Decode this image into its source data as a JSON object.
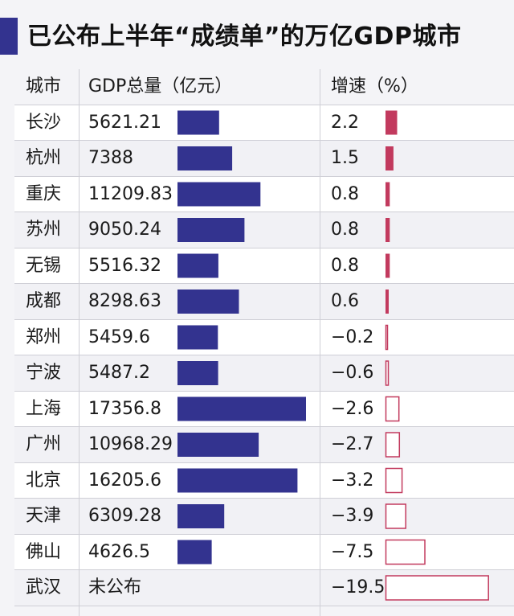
{
  "title": "已公布上半年“成绩单”的万亿GDP城市",
  "colors": {
    "gdp_bar": "#33338f",
    "growth_positive": "#c23a5e",
    "growth_negative_stroke": "#c23a5e",
    "accent": "#33338f"
  },
  "headers": {
    "city": "城市",
    "gdp": "GDP总量（亿元）",
    "growth": "增速（%）"
  },
  "chart_data": {
    "type": "table",
    "columns": [
      "城市",
      "GDP总量（亿元）",
      "增速（%）"
    ],
    "rows": [
      {
        "city": "长沙",
        "gdp_text": "5621.21",
        "gdp": 5621.21,
        "growth_text": "2.2",
        "growth": 2.2
      },
      {
        "city": "杭州",
        "gdp_text": "7388",
        "gdp": 7388,
        "growth_text": "1.5",
        "growth": 1.5
      },
      {
        "city": "重庆",
        "gdp_text": "11209.83",
        "gdp": 11209.83,
        "growth_text": "0.8",
        "growth": 0.8
      },
      {
        "city": "苏州",
        "gdp_text": "9050.24",
        "gdp": 9050.24,
        "growth_text": "0.8",
        "growth": 0.8
      },
      {
        "city": "无锡",
        "gdp_text": "5516.32",
        "gdp": 5516.32,
        "growth_text": "0.8",
        "growth": 0.8
      },
      {
        "city": "成都",
        "gdp_text": "8298.63",
        "gdp": 8298.63,
        "growth_text": "0.6",
        "growth": 0.6
      },
      {
        "city": "郑州",
        "gdp_text": "5459.6",
        "gdp": 5459.6,
        "growth_text": "−0.2",
        "growth": -0.2
      },
      {
        "city": "宁波",
        "gdp_text": "5487.2",
        "gdp": 5487.2,
        "growth_text": "−0.6",
        "growth": -0.6
      },
      {
        "city": "上海",
        "gdp_text": "17356.8",
        "gdp": 17356.8,
        "growth_text": "−2.6",
        "growth": -2.6
      },
      {
        "city": "广州",
        "gdp_text": "10968.29",
        "gdp": 10968.29,
        "growth_text": "−2.7",
        "growth": -2.7
      },
      {
        "city": "北京",
        "gdp_text": "16205.6",
        "gdp": 16205.6,
        "growth_text": "−3.2",
        "growth": -3.2
      },
      {
        "city": "天津",
        "gdp_text": "6309.28",
        "gdp": 6309.28,
        "growth_text": "−3.9",
        "growth": -3.9
      },
      {
        "city": "佛山",
        "gdp_text": "4626.5",
        "gdp": 4626.5,
        "growth_text": "−7.5",
        "growth": -7.5
      },
      {
        "city": "武汉",
        "gdp_text": "未公布",
        "gdp": null,
        "growth_text": "−19.5",
        "growth": -19.5
      }
    ]
  }
}
